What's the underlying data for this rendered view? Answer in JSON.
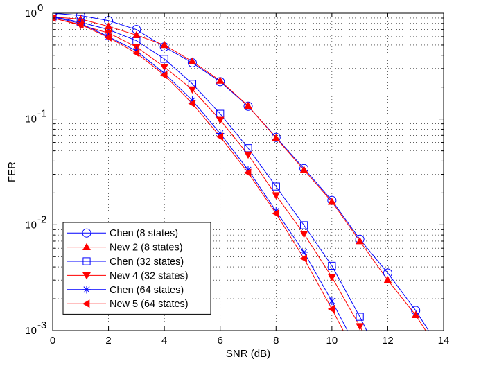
{
  "chart_data": {
    "type": "line",
    "xlabel": "SNR (dB)",
    "ylabel": "FER",
    "xlim": [
      0,
      14
    ],
    "ylim": [
      0.001,
      1
    ],
    "yscale": "log",
    "grid": true,
    "legend_position": "bottom-left",
    "x_ticks": [
      0,
      2,
      4,
      6,
      8,
      10,
      12,
      14
    ],
    "y_ticks": [
      {
        "value": 1,
        "base": "10",
        "exp": "0"
      },
      {
        "value": 0.1,
        "base": "10",
        "exp": "-1"
      },
      {
        "value": 0.01,
        "base": "10",
        "exp": "-2"
      },
      {
        "value": 0.001,
        "base": "10",
        "exp": "-3"
      }
    ],
    "series": [
      {
        "name": "Chen (8 states)",
        "color": "#0000ff",
        "marker": "circle",
        "x": [
          0,
          1,
          2,
          3,
          4,
          5,
          6,
          7,
          8,
          9,
          10,
          11,
          12,
          13,
          14
        ],
        "y": [
          1.0,
          0.95,
          0.85,
          0.7,
          0.48,
          0.34,
          0.225,
          0.132,
          0.067,
          0.034,
          0.017,
          0.0073,
          0.0035,
          0.00155,
          0.0006
        ]
      },
      {
        "name": "New 2 (8 states)",
        "color": "#ff0000",
        "marker": "triangle-up",
        "x": [
          0,
          1,
          2,
          3,
          4,
          5,
          6,
          7,
          8,
          9,
          10,
          11,
          12,
          13,
          14
        ],
        "y": [
          0.92,
          0.88,
          0.75,
          0.62,
          0.5,
          0.35,
          0.23,
          0.133,
          0.066,
          0.033,
          0.0165,
          0.007,
          0.003,
          0.0014,
          0.00055
        ]
      },
      {
        "name": "Chen (32 states)",
        "color": "#0000ff",
        "marker": "square",
        "x": [
          0,
          1,
          2,
          3,
          4,
          5,
          6,
          7,
          8,
          9,
          10,
          11,
          12
        ],
        "y": [
          0.93,
          0.82,
          0.7,
          0.55,
          0.37,
          0.215,
          0.112,
          0.053,
          0.023,
          0.0099,
          0.0041,
          0.00135,
          0.0004
        ]
      },
      {
        "name": "New 4 (32 states)",
        "color": "#ff0000",
        "marker": "triangle-down",
        "x": [
          0,
          1,
          2,
          3,
          4,
          5,
          6,
          7,
          8,
          9,
          10,
          11,
          12
        ],
        "y": [
          0.9,
          0.77,
          0.65,
          0.48,
          0.31,
          0.19,
          0.098,
          0.046,
          0.019,
          0.0082,
          0.0032,
          0.0011,
          0.00035
        ]
      },
      {
        "name": "Chen (64 states)",
        "color": "#0000ff",
        "marker": "star",
        "x": [
          0,
          1,
          2,
          3,
          4,
          5,
          6,
          7,
          8,
          9,
          10,
          11
        ],
        "y": [
          0.92,
          0.8,
          0.6,
          0.44,
          0.27,
          0.15,
          0.073,
          0.033,
          0.0135,
          0.0055,
          0.0019,
          0.0006
        ]
      },
      {
        "name": "New 5 (64 states)",
        "color": "#ff0000",
        "marker": "triangle-left",
        "x": [
          0,
          1,
          2,
          3,
          4,
          5,
          6,
          7,
          8,
          9,
          10,
          11
        ],
        "y": [
          0.9,
          0.78,
          0.59,
          0.42,
          0.26,
          0.14,
          0.068,
          0.031,
          0.0128,
          0.0048,
          0.0016,
          0.0005
        ]
      }
    ]
  }
}
